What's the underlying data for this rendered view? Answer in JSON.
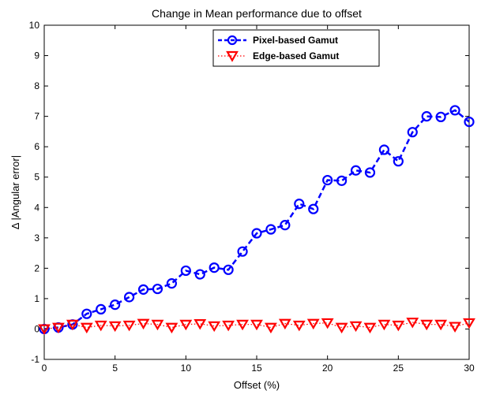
{
  "chart_data": {
    "type": "line",
    "title": "Change in Mean performance due to offset",
    "xlabel": "Offset (%)",
    "ylabel": "Δ |Angular error|",
    "xlim": [
      0,
      30
    ],
    "ylim": [
      -1,
      10
    ],
    "xticks": [
      0,
      5,
      10,
      15,
      20,
      25,
      30
    ],
    "yticks": [
      -1,
      0,
      1,
      2,
      3,
      4,
      5,
      6,
      7,
      8,
      9,
      10
    ],
    "grid": false,
    "legend_position": "top-right",
    "x": [
      0,
      1,
      2,
      3,
      4,
      5,
      6,
      7,
      8,
      9,
      10,
      11,
      12,
      13,
      14,
      15,
      16,
      17,
      18,
      19,
      20,
      21,
      22,
      23,
      24,
      25,
      26,
      27,
      28,
      29,
      30
    ],
    "series": [
      {
        "name": "Pixel-based Gamut",
        "color": "#0000ff",
        "marker": "circle",
        "line_style": "dashed",
        "values": [
          0.0,
          0.05,
          0.15,
          0.5,
          0.65,
          0.8,
          1.05,
          1.3,
          1.32,
          1.5,
          1.92,
          1.8,
          2.02,
          1.95,
          2.55,
          3.15,
          3.28,
          3.42,
          4.12,
          3.95,
          4.9,
          4.88,
          5.22,
          5.15,
          5.9,
          5.52,
          6.48,
          7.0,
          6.98,
          7.2,
          6.82
        ]
      },
      {
        "name": "Edge-based Gamut",
        "color": "#ff0000",
        "marker": "triangle-down",
        "line_style": "dotted",
        "values": [
          0.0,
          0.05,
          0.15,
          0.05,
          0.12,
          0.1,
          0.12,
          0.18,
          0.15,
          0.05,
          0.15,
          0.17,
          0.1,
          0.12,
          0.15,
          0.15,
          0.05,
          0.18,
          0.12,
          0.18,
          0.2,
          0.05,
          0.1,
          0.05,
          0.15,
          0.12,
          0.22,
          0.15,
          0.15,
          0.08,
          0.2
        ]
      }
    ]
  }
}
